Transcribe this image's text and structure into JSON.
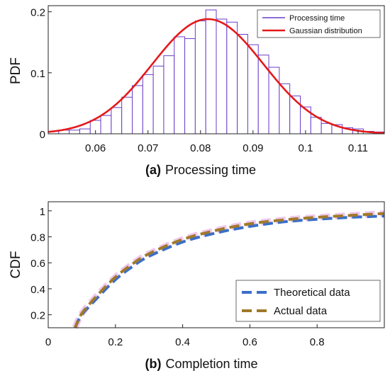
{
  "colors": {
    "bar": "#6a3dc9",
    "gaussian": "#e41a1c",
    "theoretical": "#3a6fc9",
    "actual": "#a07a2a",
    "actual_glow": "#f0c8ee"
  },
  "chart_data": [
    {
      "type": "bar",
      "caption_label": "(a)",
      "caption_text": "Processing time",
      "ylabel": "PDF",
      "xlabel": "",
      "xlim": [
        0.051,
        0.115
      ],
      "ylim": [
        0,
        0.21
      ],
      "xticks": [
        0.06,
        0.07,
        0.08,
        0.09,
        0.1,
        0.11
      ],
      "xtick_labels": [
        "0.06",
        "0.07",
        "0.08",
        "0.09",
        "0.1",
        "0.11"
      ],
      "yticks": [
        0,
        0.1,
        0.2
      ],
      "ytick_labels": [
        "0",
        "0.1",
        "0.2"
      ],
      "legend_position": "top-right",
      "histogram": {
        "name": "Processing time",
        "bin_start": 0.051,
        "bin_width": 0.002,
        "values": [
          0.004,
          0.006,
          0.006,
          0.008,
          0.022,
          0.03,
          0.043,
          0.06,
          0.079,
          0.097,
          0.111,
          0.128,
          0.159,
          0.156,
          0.185,
          0.203,
          0.188,
          0.183,
          0.163,
          0.146,
          0.129,
          0.109,
          0.082,
          0.062,
          0.044,
          0.027,
          0.017,
          0.015,
          0.01,
          0.008,
          0.004,
          0.003
        ]
      },
      "curve": {
        "name": "Gaussian distribution",
        "mean": 0.0814,
        "sd": 0.0106
      }
    },
    {
      "type": "line",
      "caption_label": "(b)",
      "caption_text": "Completion time",
      "ylabel": "CDF",
      "xlabel": "",
      "xlim": [
        0,
        1
      ],
      "ylim": [
        0.1,
        1.07
      ],
      "xticks": [
        0,
        0.2,
        0.4,
        0.6,
        0.8
      ],
      "xtick_labels": [
        "0",
        "0.2",
        "0.4",
        "0.6",
        "0.8"
      ],
      "yticks": [
        0.2,
        0.4,
        0.6,
        0.8,
        1
      ],
      "ytick_labels": [
        "0.2",
        "0.4",
        "0.6",
        "0.8",
        "1"
      ],
      "legend_position": "bottom-right",
      "series": [
        {
          "name": "Theoretical data",
          "x": [
            0.08,
            0.1,
            0.15,
            0.2,
            0.25,
            0.3,
            0.4,
            0.5,
            0.6,
            0.7,
            0.8,
            0.9,
            1.0
          ],
          "y": [
            0.1,
            0.2,
            0.34,
            0.47,
            0.57,
            0.65,
            0.76,
            0.83,
            0.88,
            0.915,
            0.935,
            0.95,
            0.96
          ]
        },
        {
          "name": "Actual data",
          "x": [
            0.08,
            0.1,
            0.15,
            0.2,
            0.25,
            0.3,
            0.4,
            0.5,
            0.6,
            0.7,
            0.8,
            0.9,
            1.0
          ],
          "y": [
            0.1,
            0.21,
            0.36,
            0.49,
            0.59,
            0.67,
            0.78,
            0.85,
            0.9,
            0.93,
            0.95,
            0.965,
            0.98
          ]
        }
      ]
    }
  ]
}
